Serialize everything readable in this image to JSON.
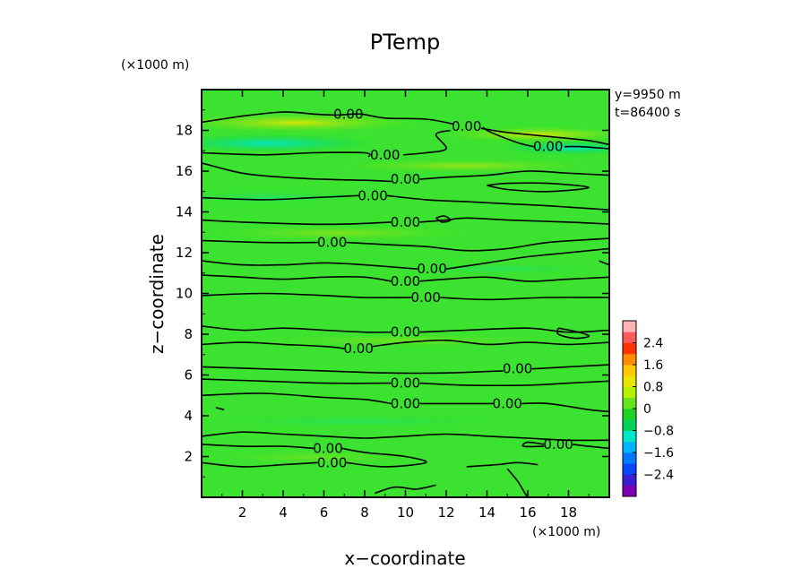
{
  "chart_data": {
    "type": "heatmap",
    "title": "PTemp",
    "xlabel": "x−coordinate",
    "ylabel": "z−coordinate",
    "x_unit": "(×1000 m)",
    "y_unit": "(×1000 m)",
    "xlim": [
      0,
      20
    ],
    "ylim": [
      0,
      20
    ],
    "xticks": [
      2,
      4,
      6,
      8,
      10,
      12,
      14,
      16,
      18
    ],
    "yticks": [
      2,
      4,
      6,
      8,
      10,
      12,
      14,
      16,
      18
    ],
    "annotations": [
      "y=9950 m",
      "t=86400 s"
    ],
    "colorbar": {
      "ticks": [
        "2.4",
        "1.6",
        "0.8",
        "0",
        "−0.8",
        "−1.6",
        "−2.4"
      ],
      "tick_values": [
        2.4,
        1.6,
        0.8,
        0,
        -0.8,
        -1.6,
        -2.4
      ],
      "range": [
        -3.2,
        3.2
      ],
      "colors": [
        "#7b00b4",
        "#3a1ed2",
        "#0a46ff",
        "#0078ff",
        "#00b4ff",
        "#00e6c8",
        "#00d25a",
        "#1ed228",
        "#64e61e",
        "#b4f000",
        "#e6e600",
        "#ffc800",
        "#ff8c00",
        "#ff3200",
        "#ff5a5a",
        "#ffb4b4"
      ]
    },
    "contour_level": "0.00",
    "contour_labels": [
      {
        "text": "0.00",
        "x": 7.2,
        "z": 18.8
      },
      {
        "text": "0.00",
        "x": 13.0,
        "z": 18.2
      },
      {
        "text": "0.00",
        "x": 17.0,
        "z": 17.2
      },
      {
        "text": "0.00",
        "x": 9.0,
        "z": 16.8
      },
      {
        "text": "0.00",
        "x": 10.0,
        "z": 15.6
      },
      {
        "text": "0.00",
        "x": 8.4,
        "z": 14.8
      },
      {
        "text": "0.00",
        "x": 10.0,
        "z": 13.5
      },
      {
        "text": "0.00",
        "x": 6.4,
        "z": 12.5
      },
      {
        "text": "0.00",
        "x": 11.3,
        "z": 11.2
      },
      {
        "text": "0.00",
        "x": 10.0,
        "z": 10.6
      },
      {
        "text": "0.00",
        "x": 11.0,
        "z": 9.8
      },
      {
        "text": "0.00",
        "x": 10.0,
        "z": 8.1
      },
      {
        "text": "0.00",
        "x": 7.7,
        "z": 7.3
      },
      {
        "text": "0.00",
        "x": 15.5,
        "z": 6.3
      },
      {
        "text": "0.00",
        "x": 10.0,
        "z": 5.6
      },
      {
        "text": "0.00",
        "x": 10.0,
        "z": 4.6
      },
      {
        "text": "0.00",
        "x": 15.0,
        "z": 4.6
      },
      {
        "text": "0.00",
        "x": 6.2,
        "z": 2.4
      },
      {
        "text": "0.00",
        "x": 17.5,
        "z": 2.6
      },
      {
        "text": "0.00",
        "x": 6.4,
        "z": 1.7
      }
    ],
    "contours": [
      [
        [
          0,
          18.4
        ],
        [
          2,
          18.7
        ],
        [
          4,
          18.9
        ],
        [
          5.5,
          18.8
        ],
        [
          6.6,
          18.75
        ],
        [
          7.8,
          18.8
        ],
        [
          9,
          18.6
        ],
        [
          11,
          18.55
        ],
        [
          12.4,
          18.3
        ]
      ],
      [
        [
          13.7,
          18.1
        ],
        [
          15,
          17.9
        ],
        [
          17,
          17.7
        ],
        [
          19,
          17.5
        ],
        [
          20,
          17.3
        ]
      ],
      [
        [
          0,
          16.9
        ],
        [
          3,
          16.8
        ],
        [
          5.5,
          16.9
        ],
        [
          8,
          16.9
        ],
        [
          8.2,
          16.7
        ]
      ],
      [
        [
          9.9,
          16.8
        ],
        [
          11,
          16.9
        ],
        [
          12,
          17.1
        ],
        [
          11.5,
          17.8
        ],
        [
          12.2,
          18.0
        ]
      ],
      [
        [
          13.8,
          18.15
        ],
        [
          14.2,
          17.9
        ],
        [
          15.5,
          17.4
        ],
        [
          16.3,
          17.2
        ]
      ],
      [
        [
          17.8,
          17.2
        ],
        [
          18.6,
          17.2
        ],
        [
          20,
          17.1
        ]
      ],
      [
        [
          0,
          16.4
        ],
        [
          2,
          15.9
        ],
        [
          4,
          15.7
        ],
        [
          6,
          15.6
        ],
        [
          8,
          15.55
        ],
        [
          9.3,
          15.5
        ]
      ],
      [
        [
          10.7,
          15.6
        ],
        [
          12,
          15.7
        ],
        [
          14,
          15.8
        ],
        [
          16,
          16.0
        ],
        [
          18,
          15.9
        ],
        [
          20,
          15.8
        ]
      ],
      [
        [
          0,
          14.7
        ],
        [
          3,
          14.6
        ],
        [
          5.5,
          14.7
        ],
        [
          7.7,
          14.8
        ]
      ],
      [
        [
          9.1,
          14.8
        ],
        [
          11,
          14.6
        ],
        [
          13,
          14.5
        ],
        [
          15,
          14.4
        ],
        [
          17,
          14.3
        ],
        [
          20,
          14.1
        ]
      ],
      [
        [
          0,
          13.6
        ],
        [
          2,
          13.5
        ],
        [
          5,
          13.4
        ],
        [
          7,
          13.4
        ],
        [
          9.3,
          13.5
        ]
      ],
      [
        [
          10.7,
          13.5
        ],
        [
          12,
          13.6
        ],
        [
          13,
          13.7
        ],
        [
          15,
          13.6
        ],
        [
          18,
          13.5
        ],
        [
          20,
          13.4
        ]
      ],
      [
        [
          0,
          12.6
        ],
        [
          3,
          12.5
        ],
        [
          5.7,
          12.5
        ]
      ],
      [
        [
          7.1,
          12.5
        ],
        [
          9,
          12.4
        ],
        [
          11,
          12.3
        ],
        [
          13,
          12.1
        ],
        [
          15,
          12.2
        ],
        [
          17,
          12.5
        ],
        [
          20,
          12.7
        ]
      ],
      [
        [
          0,
          11.6
        ],
        [
          2,
          11.4
        ],
        [
          4,
          11.4
        ],
        [
          6,
          11.5
        ],
        [
          8,
          11.4
        ],
        [
          10.6,
          11.2
        ]
      ],
      [
        [
          12,
          11.2
        ],
        [
          14,
          11.5
        ],
        [
          16,
          11.8
        ],
        [
          18,
          12.0
        ],
        [
          20,
          12.2
        ]
      ],
      [
        [
          0,
          10.9
        ],
        [
          2,
          10.8
        ],
        [
          4,
          10.7
        ],
        [
          6,
          10.8
        ],
        [
          8,
          10.8
        ],
        [
          9.3,
          10.6
        ]
      ],
      [
        [
          10.7,
          10.6
        ],
        [
          12,
          10.7
        ],
        [
          14,
          10.8
        ],
        [
          16,
          10.6
        ],
        [
          18,
          10.7
        ],
        [
          20,
          10.8
        ]
      ],
      [
        [
          0,
          9.9
        ],
        [
          3,
          10.0
        ],
        [
          6,
          9.9
        ],
        [
          8,
          9.8
        ],
        [
          10.3,
          9.8
        ]
      ],
      [
        [
          11.7,
          9.8
        ],
        [
          14,
          9.7
        ],
        [
          17,
          9.8
        ],
        [
          20,
          9.8
        ]
      ],
      [
        [
          0,
          8.4
        ],
        [
          2,
          8.2
        ],
        [
          4,
          8.3
        ],
        [
          6,
          8.2
        ],
        [
          8,
          8.1
        ],
        [
          9.3,
          8.1
        ]
      ],
      [
        [
          10.7,
          8.1
        ],
        [
          13,
          8.2
        ],
        [
          16,
          8.3
        ],
        [
          18,
          8.1
        ],
        [
          20,
          8.2
        ]
      ],
      [
        [
          0,
          7.5
        ],
        [
          2,
          7.6
        ],
        [
          4,
          7.5
        ],
        [
          6,
          7.4
        ],
        [
          7.0,
          7.3
        ]
      ],
      [
        [
          8.4,
          7.4
        ],
        [
          10,
          7.6
        ],
        [
          12,
          7.7
        ],
        [
          14,
          7.5
        ],
        [
          16,
          7.6
        ],
        [
          18,
          7.5
        ],
        [
          20,
          7.6
        ]
      ],
      [
        [
          0,
          6.4
        ],
        [
          3,
          6.3
        ],
        [
          6,
          6.2
        ],
        [
          9,
          6.1
        ],
        [
          12,
          6.1
        ],
        [
          14.8,
          6.2
        ]
      ],
      [
        [
          16.2,
          6.3
        ],
        [
          18,
          6.4
        ],
        [
          20,
          6.5
        ]
      ],
      [
        [
          0,
          5.8
        ],
        [
          3,
          5.7
        ],
        [
          6,
          5.6
        ],
        [
          9.3,
          5.6
        ]
      ],
      [
        [
          10.7,
          5.6
        ],
        [
          13,
          5.5
        ],
        [
          16,
          5.5
        ],
        [
          18,
          5.6
        ],
        [
          20,
          5.7
        ]
      ],
      [
        [
          0,
          5.0
        ],
        [
          3,
          5.1
        ],
        [
          6,
          4.9
        ],
        [
          8,
          4.8
        ],
        [
          9.3,
          4.6
        ]
      ],
      [
        [
          10.7,
          4.6
        ],
        [
          12,
          4.6
        ],
        [
          14.3,
          4.6
        ]
      ],
      [
        [
          15.7,
          4.6
        ],
        [
          17,
          4.6
        ],
        [
          19,
          4.3
        ],
        [
          20,
          4.2
        ]
      ],
      [
        [
          0,
          3.0
        ],
        [
          2,
          3.2
        ],
        [
          4,
          3.1
        ],
        [
          6,
          3.0
        ],
        [
          8,
          2.9
        ],
        [
          10,
          3.0
        ],
        [
          12,
          3.1
        ],
        [
          14,
          3.0
        ],
        [
          16,
          2.9
        ],
        [
          18,
          2.8
        ],
        [
          20,
          2.8
        ]
      ],
      [
        [
          0,
          2.6
        ],
        [
          2,
          2.5
        ],
        [
          4,
          2.5
        ],
        [
          5.5,
          2.4
        ]
      ],
      [
        [
          6.9,
          2.4
        ],
        [
          8,
          2.2
        ],
        [
          10,
          2.0
        ],
        [
          11,
          1.7
        ],
        [
          9,
          1.5
        ],
        [
          7.1,
          1.7
        ]
      ],
      [
        [
          0,
          1.7
        ],
        [
          2,
          1.5
        ],
        [
          4,
          1.6
        ],
        [
          5.7,
          1.7
        ]
      ],
      [
        [
          16.8,
          2.6
        ],
        [
          16,
          2.7
        ],
        [
          15.8,
          2.5
        ],
        [
          16.8,
          2.5
        ]
      ],
      [
        [
          18.2,
          2.6
        ],
        [
          19,
          2.5
        ],
        [
          20,
          2.4
        ]
      ],
      [
        [
          13,
          1.5
        ],
        [
          14.5,
          1.6
        ],
        [
          15.5,
          1.7
        ],
        [
          16.5,
          1.6
        ]
      ],
      [
        [
          15,
          1.4
        ],
        [
          15.5,
          0.8
        ],
        [
          15.8,
          0.3
        ],
        [
          16,
          0
        ]
      ],
      [
        [
          8.5,
          0.2
        ],
        [
          9.5,
          0.5
        ],
        [
          10.5,
          0.4
        ],
        [
          11.5,
          0.6
        ]
      ],
      [
        [
          14,
          15.3
        ],
        [
          15,
          15.4
        ],
        [
          17,
          15.4
        ],
        [
          19,
          15.2
        ],
        [
          17,
          15.0
        ],
        [
          15,
          15.1
        ],
        [
          14,
          15.3
        ]
      ],
      [
        [
          11.5,
          13.7
        ],
        [
          11.9,
          13.8
        ],
        [
          12.2,
          13.6
        ],
        [
          11.8,
          13.5
        ],
        [
          11.5,
          13.7
        ]
      ],
      [
        [
          19.5,
          11.6
        ],
        [
          20,
          11.4
        ]
      ],
      [
        [
          17.5,
          8.3
        ],
        [
          18.5,
          8.1
        ],
        [
          19,
          7.9
        ],
        [
          18.3,
          7.8
        ],
        [
          17.5,
          8.0
        ],
        [
          17.5,
          8.3
        ]
      ],
      [
        [
          0.7,
          4.4
        ],
        [
          1.1,
          4.3
        ]
      ]
    ]
  }
}
